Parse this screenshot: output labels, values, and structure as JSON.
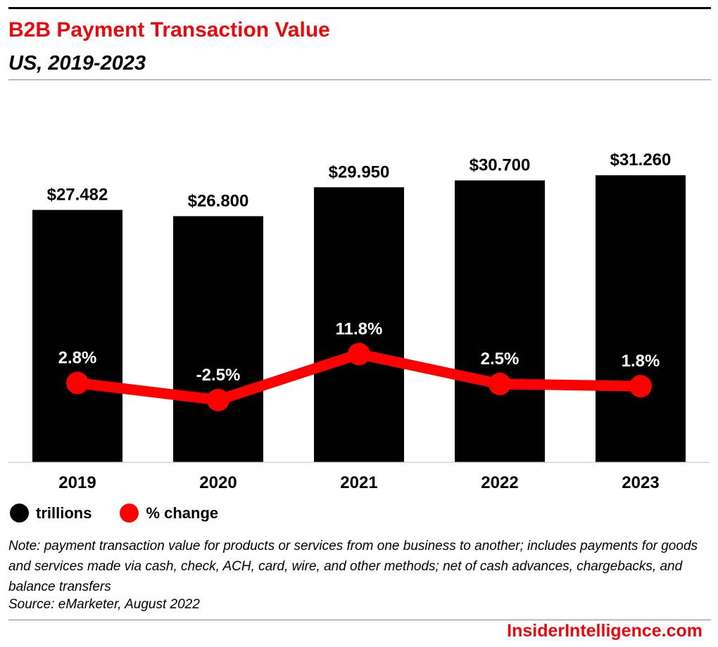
{
  "header": {
    "title": "B2B Payment Transaction Value",
    "subtitle": "US, 2019-2023"
  },
  "colors": {
    "accent": "#e8080e",
    "bar": "#000000",
    "line": "#ff0000"
  },
  "chart_data": {
    "type": "bar",
    "categories": [
      "2019",
      "2020",
      "2021",
      "2022",
      "2023"
    ],
    "series": [
      {
        "name": "trillions",
        "type": "bar",
        "values": [
          27.482,
          26.8,
          29.95,
          30.7,
          31.26
        ],
        "labels": [
          "$27.482",
          "$26.800",
          "$29.950",
          "$30.700",
          "$31.260"
        ]
      },
      {
        "name": "% change",
        "type": "line",
        "values": [
          2.8,
          -2.5,
          11.8,
          2.5,
          1.8
        ],
        "labels": [
          "2.8%",
          "-2.5%",
          "11.8%",
          "2.5%",
          "1.8%"
        ]
      }
    ],
    "ylim_bars": [
      0,
      35
    ],
    "legend_position": "bottom-left",
    "grid": false
  },
  "legend": [
    {
      "label": "trillions",
      "color": "#000000"
    },
    {
      "label": "% change",
      "color": "#ff0000"
    }
  ],
  "footer": {
    "note": "Note: payment transaction value for products or services from one business to another; includes payments for goods and services made via cash, check, ACH, card, wire, and other methods; net of cash advances, chargebacks, and balance transfers",
    "source": "Source: eMarketer, August 2022",
    "brand": "InsiderIntelligence.com"
  }
}
